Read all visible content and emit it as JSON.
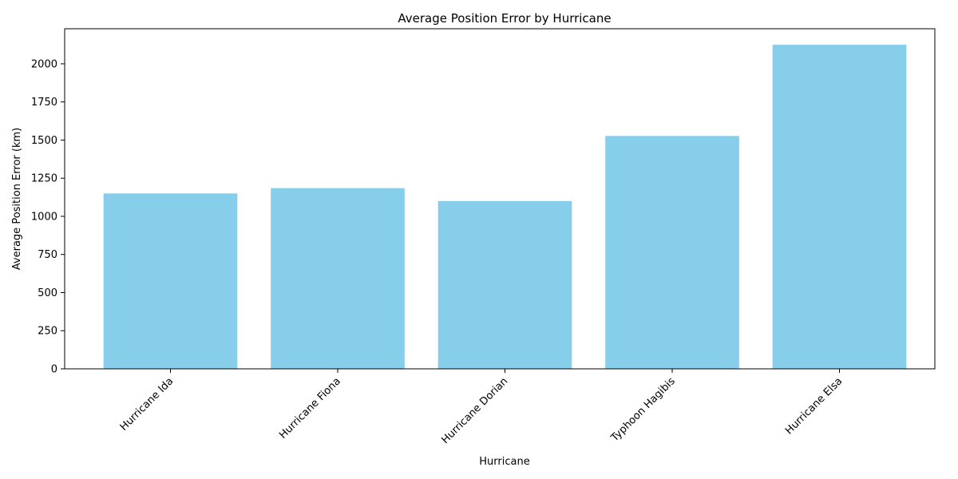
{
  "chart_data": {
    "type": "bar",
    "title": "Average Position Error by Hurricane",
    "xlabel": "Hurricane",
    "ylabel": "Average Position Error (km)",
    "categories": [
      "Hurricane Ida",
      "Hurricane Fiona",
      "Hurricane Dorian",
      "Typhoon Hagibis",
      "Hurricane Elsa"
    ],
    "values": [
      1150,
      1185,
      1100,
      1527,
      2125
    ],
    "ylim": [
      0,
      2230
    ],
    "yticks": [
      0,
      250,
      500,
      750,
      1000,
      1250,
      1500,
      1750,
      2000
    ],
    "bar_color": "#87ceeb",
    "grid": false,
    "legend": "none"
  }
}
